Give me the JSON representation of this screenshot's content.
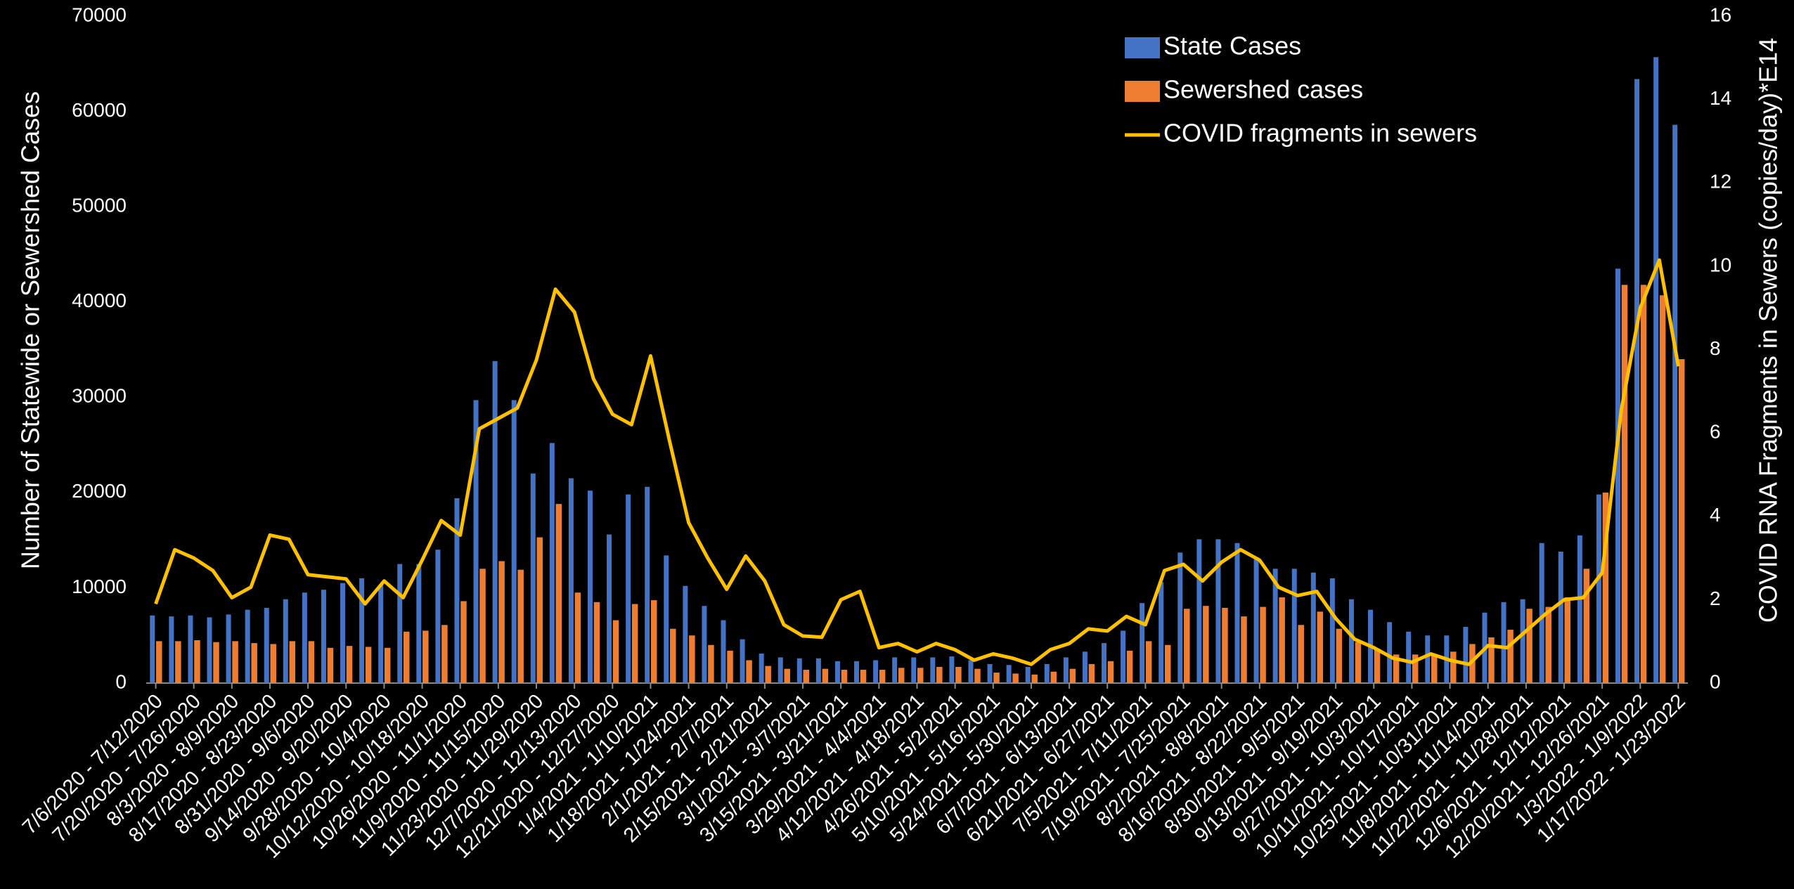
{
  "chart_data": {
    "type": "bar",
    "ylabel": "Number of Statewide or Sewershed Cases",
    "y2label": "COVID RNA Fragments in Sewers (copies/day)*E14",
    "categories": [
      "7/6/2020 - 7/12/2020",
      null,
      "7/20/2020 - 7/26/2020",
      null,
      "8/3/2020 - 8/9/2020",
      null,
      "8/17/2020 - 8/23/2020",
      null,
      "8/31/2020 - 9/6/2020",
      null,
      "9/14/2020 - 9/20/2020",
      null,
      "9/28/2020 - 10/4/2020",
      null,
      "10/12/2020 - 10/18/2020",
      null,
      "10/26/2020 - 11/1/2020",
      null,
      "11/9/2020 - 11/15/2020",
      null,
      "11/23/2020 - 11/29/2020",
      null,
      "12/7/2020 - 12/13/2020",
      null,
      "12/21/2020 - 12/27/2020",
      null,
      "1/4/2021 - 1/10/2021",
      null,
      "1/18/2021 - 1/24/2021",
      null,
      "2/1/2021 - 2/7/2021",
      null,
      "2/15/2021 - 2/21/2021",
      null,
      "3/1/2021 - 3/7/2021",
      null,
      "3/15/2021 - 3/21/2021",
      null,
      "3/29/2021 - 4/4/2021",
      null,
      "4/12/2021 - 4/18/2021",
      null,
      "4/26/2021 - 5/2/2021",
      null,
      "5/10/2021 - 5/16/2021",
      null,
      "5/24/2021 - 5/30/2021",
      null,
      "6/7/2021 - 6/13/2021",
      null,
      "6/21/2021 - 6/27/2021",
      null,
      "7/5/2021 - 7/11/2021",
      null,
      "7/19/2021 - 7/25/2021",
      null,
      "8/2/2021 - 8/8/2021",
      null,
      "8/16/2021 - 8/22/2021",
      null,
      "8/30/2021 - 9/5/2021",
      null,
      "9/13/2021 - 9/19/2021",
      null,
      "9/27/2021 - 10/3/2021",
      null,
      "10/11/2021 - 10/17/2021",
      null,
      "10/25/2021 - 10/31/2021",
      null,
      "11/8/2021 - 11/14/2021",
      null,
      "11/22/2021 - 11/28/2021",
      null,
      "12/6/2021 - 12/12/2021",
      null,
      "12/20/2021 - 12/26/2021",
      null,
      "1/3/2022 - 1/9/2022",
      null,
      "1/17/2022 - 1/23/2022"
    ],
    "series": [
      {
        "name": "State Cases",
        "type": "bar",
        "color": "#4472c4",
        "values": [
          7100,
          7000,
          7100,
          6900,
          7200,
          7700,
          7900,
          8800,
          9500,
          9800,
          10500,
          11000,
          10300,
          12500,
          12500,
          14000,
          19400,
          29700,
          33800,
          29700,
          22000,
          25200,
          21500,
          20200,
          15600,
          19800,
          20600,
          13400,
          10200,
          8100,
          6600,
          4600,
          3100,
          2700,
          2600,
          2600,
          2300,
          2300,
          2400,
          2700,
          2700,
          2700,
          2800,
          2400,
          2000,
          1900,
          1700,
          2000,
          2700,
          3300,
          4200,
          5500,
          8400,
          10600,
          13700,
          15100,
          15100,
          14700,
          13200,
          12000,
          12000,
          11600,
          11000,
          8800,
          7700,
          6400,
          5400,
          5000,
          5000,
          5900,
          7400,
          8500,
          8800,
          14700,
          13800,
          15500,
          19800,
          43500,
          63400,
          65700,
          58600
        ]
      },
      {
        "name": "Sewershed cases",
        "type": "bar",
        "color": "#ed7d31",
        "values": [
          4400,
          4400,
          4500,
          4300,
          4400,
          4200,
          4100,
          4400,
          4400,
          3700,
          3900,
          3800,
          3700,
          5400,
          5500,
          6100,
          8600,
          12000,
          12800,
          11900,
          15300,
          18800,
          9500,
          8500,
          6600,
          8300,
          8700,
          5700,
          5000,
          4000,
          3400,
          2400,
          1800,
          1500,
          1400,
          1500,
          1400,
          1400,
          1400,
          1600,
          1600,
          1700,
          1700,
          1500,
          1100,
          1000,
          900,
          1200,
          1500,
          2000,
          2300,
          3400,
          4400,
          4000,
          7800,
          8100,
          7900,
          7000,
          8000,
          9000,
          6100,
          7500,
          5700,
          4300,
          3600,
          3000,
          3000,
          2900,
          3300,
          4100,
          4800,
          5600,
          7800,
          8000,
          9000,
          12000,
          20000,
          41800,
          41800,
          40700,
          34000
        ]
      },
      {
        "name": "COVID fragments in sewers",
        "type": "line",
        "axis": "y2",
        "color": "#ffc000",
        "values": [
          1.9,
          3.2,
          3.0,
          2.7,
          2.05,
          2.3,
          3.55,
          3.45,
          2.6,
          2.55,
          2.5,
          1.9,
          2.45,
          2.05,
          2.95,
          3.9,
          3.55,
          6.1,
          6.35,
          6.6,
          7.75,
          9.45,
          8.9,
          7.3,
          6.45,
          6.2,
          7.85,
          5.8,
          3.85,
          3.0,
          2.25,
          3.05,
          2.45,
          1.4,
          1.13,
          1.1,
          2.0,
          2.2,
          0.85,
          0.95,
          0.75,
          0.95,
          0.8,
          0.55,
          0.7,
          0.6,
          0.45,
          0.8,
          0.95,
          1.3,
          1.25,
          1.6,
          1.4,
          2.7,
          2.85,
          2.45,
          2.9,
          3.2,
          2.95,
          2.3,
          2.1,
          2.2,
          1.55,
          1.05,
          0.85,
          0.6,
          0.5,
          0.7,
          0.55,
          0.45,
          0.9,
          0.85,
          1.25,
          1.65,
          2.0,
          2.05,
          2.65,
          6.55,
          9.0,
          10.15,
          7.6
        ]
      }
    ],
    "ylim": [
      0,
      70000
    ],
    "yticks": [
      0,
      10000,
      20000,
      30000,
      40000,
      50000,
      60000,
      70000
    ],
    "y2lim": [
      0,
      16
    ],
    "y2ticks": [
      0,
      2,
      4,
      6,
      8,
      10,
      12,
      14,
      16
    ],
    "grid": false,
    "legend": "upper right"
  }
}
